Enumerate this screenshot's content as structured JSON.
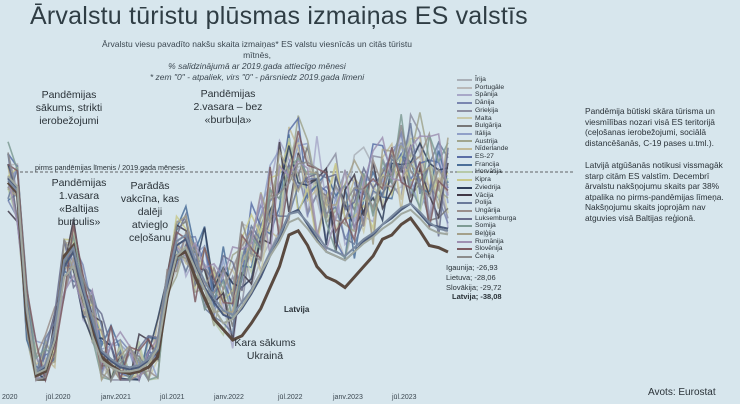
{
  "title": "Ārvalstu tūristu plūsmas izmaiņas ES valstīs",
  "subtitle_lines": [
    "Ārvalstu viesu pavadīto nakšu skaita izmaiņas* ES valstu viesnīcās un citās tūristu mītnēs,",
    "% salīdzinājumā ar 2019.gada attiecīgo mēnesi",
    "* zem \"0\" - atpaliek, virs \"0\" - pārsniedz 2019.gada līmeni"
  ],
  "baseline_label": "pirms pandēmijas līmenis / 2019.gada mēnesis",
  "annotations": {
    "a1": [
      "Pandēmijas",
      "sākums, strikti",
      "ierobežojumi"
    ],
    "a2": [
      "Pandēmijas",
      "1.vasara",
      "«Baltijas",
      "burbulis»"
    ],
    "a3": [
      "Parādās",
      "vakcīna, kas",
      "dalēji",
      "atviegļo",
      "ceļošanu"
    ],
    "a4": [
      "Pandēmijas",
      "2.vasara – bez",
      "«burbuļa»"
    ],
    "a5": [
      "Kara sākums",
      "Ukrainā"
    ],
    "latvija_line_label": "Latvija"
  },
  "legend": [
    {
      "name": "Īrija",
      "color": "#aab0b8"
    },
    {
      "name": "Portugāle",
      "color": "#b9b9b9"
    },
    {
      "name": "Spānija",
      "color": "#a8a8c8"
    },
    {
      "name": "Dānija",
      "color": "#7a86b0"
    },
    {
      "name": "Grieķija",
      "color": "#8d8fa2"
    },
    {
      "name": "Malta",
      "color": "#c9c9a9"
    },
    {
      "name": "Bulgārija",
      "color": "#777777"
    },
    {
      "name": "Itālija",
      "color": "#90a0c8"
    },
    {
      "name": "Austrija",
      "color": "#a0a58e"
    },
    {
      "name": "Nīderlande",
      "color": "#c2bb9a"
    },
    {
      "name": "ES-27",
      "color": "#5b6fa6"
    },
    {
      "name": "Francija",
      "color": "#4b6f99"
    },
    {
      "name": "Horvātija",
      "color": "#b6c9a9"
    },
    {
      "name": "Kipra",
      "color": "#c8c88c"
    },
    {
      "name": "Zviedrija",
      "color": "#2e3d59"
    },
    {
      "name": "Vācija",
      "color": "#403846"
    },
    {
      "name": "Polija",
      "color": "#6a7a9a"
    },
    {
      "name": "Ungārija",
      "color": "#9a8f8c"
    },
    {
      "name": "Luksemburga",
      "color": "#6a6e8d"
    },
    {
      "name": "Somija",
      "color": "#7e9b94"
    },
    {
      "name": "Beļģija",
      "color": "#a4a08a"
    },
    {
      "name": "Rumānija",
      "color": "#9e90b1"
    },
    {
      "name": "Slovēnija",
      "color": "#7d5b62"
    },
    {
      "name": "Čehija",
      "color": "#8c8c8c"
    }
  ],
  "end_labels": [
    {
      "text": "Igaunija; -26,93",
      "color": "#4a5a7a"
    },
    {
      "text": "Lietuva; -28,06",
      "color": "#7a8aa0"
    },
    {
      "text": "Slovākija; -29,72",
      "color": "#a0a8a0"
    },
    {
      "text": "Latvija; -38,08",
      "color": "#2a2a2a"
    }
  ],
  "x_ticks": [
    "2020",
    "jūl.2020",
    "janv.2021",
    "jūl.2021",
    "janv.2022",
    "jūl.2022",
    "janv.2023",
    "jūl.2023"
  ],
  "right_paragraphs": [
    "Pandēmija būtiski skāra tūrisma un viesmīlības nozari visā ES teritorijā (ceļošanas ierobežojumi, sociālā distancēšanās, C-19 pases u.tml.).",
    "Latvijā atgūšanās notikusi vissmagāk starp citām ES valstīm. Decembrī ārvalstu nakšņojumu skaits par 38% atpalika no pirms-pandēmijas līmeņa. Nakšņojumu skaits joprojām nav atguvies visā Baltijas reģionā."
  ],
  "source": "Avots: Eurostat",
  "chart_data": {
    "type": "line",
    "title": "Ārvalstu tūristu plūsmas izmaiņas ES valstīs",
    "ylabel": "",
    "xlabel": "",
    "ylim": [
      -100,
      50
    ],
    "x": [
      "2020-01",
      "2020-02",
      "2020-03",
      "2020-04",
      "2020-05",
      "2020-06",
      "2020-07",
      "2020-08",
      "2020-09",
      "2020-10",
      "2020-11",
      "2020-12",
      "2021-01",
      "2021-02",
      "2021-03",
      "2021-04",
      "2021-05",
      "2021-06",
      "2021-07",
      "2021-08",
      "2021-09",
      "2021-10",
      "2021-11",
      "2021-12",
      "2022-01",
      "2022-02",
      "2022-03",
      "2022-04",
      "2022-05",
      "2022-06",
      "2022-07",
      "2022-08",
      "2022-09",
      "2022-10",
      "2022-11",
      "2022-12",
      "2023-01",
      "2023-02",
      "2023-03",
      "2023-04",
      "2023-05",
      "2023-06",
      "2023-07",
      "2023-08",
      "2023-09",
      "2023-10",
      "2023-11",
      "2023-12"
    ],
    "series": [
      {
        "name": "Latvija",
        "values": [
          -5,
          -10,
          -70,
          -97,
          -95,
          -80,
          -40,
          -35,
          -60,
          -75,
          -88,
          -92,
          -95,
          -96,
          -95,
          -93,
          -88,
          -60,
          -40,
          -38,
          -50,
          -60,
          -70,
          -75,
          -80,
          -78,
          -72,
          -65,
          -55,
          -45,
          -30,
          -28,
          -35,
          -45,
          -50,
          -52,
          -55,
          -50,
          -45,
          -40,
          -32,
          -30,
          -25,
          -22,
          -28,
          -35,
          -36,
          -38.08
        ]
      },
      {
        "name": "Igaunija",
        "values": [
          -3,
          -8,
          -65,
          -96,
          -93,
          -78,
          -45,
          -38,
          -58,
          -72,
          -86,
          -90,
          -93,
          -94,
          -93,
          -90,
          -85,
          -55,
          -35,
          -32,
          -45,
          -55,
          -62,
          -68,
          -70,
          -65,
          -58,
          -50,
          -40,
          -32,
          -20,
          -18,
          -25,
          -32,
          -38,
          -40,
          -42,
          -38,
          -33,
          -30,
          -25,
          -22,
          -18,
          -15,
          -20,
          -25,
          -26,
          -26.93
        ]
      },
      {
        "name": "Lietuva",
        "values": [
          -4,
          -9,
          -66,
          -95,
          -92,
          -75,
          -42,
          -36,
          -55,
          -70,
          -85,
          -89,
          -92,
          -93,
          -92,
          -89,
          -82,
          -52,
          -33,
          -30,
          -42,
          -52,
          -60,
          -66,
          -68,
          -62,
          -56,
          -48,
          -38,
          -30,
          -20,
          -19,
          -24,
          -30,
          -36,
          -38,
          -40,
          -36,
          -32,
          -29,
          -25,
          -21,
          -17,
          -15,
          -19,
          -24,
          -27,
          -28.06
        ]
      },
      {
        "name": "Slovākija",
        "values": [
          -2,
          -7,
          -64,
          -96,
          -94,
          -80,
          -50,
          -45,
          -60,
          -78,
          -90,
          -93,
          -95,
          -95,
          -94,
          -91,
          -84,
          -58,
          -40,
          -36,
          -46,
          -56,
          -65,
          -72,
          -70,
          -64,
          -57,
          -48,
          -40,
          -33,
          -24,
          -22,
          -27,
          -33,
          -38,
          -40,
          -42,
          -38,
          -34,
          -31,
          -27,
          -24,
          -20,
          -18,
          -22,
          -27,
          -29,
          -29.72
        ]
      }
    ]
  }
}
